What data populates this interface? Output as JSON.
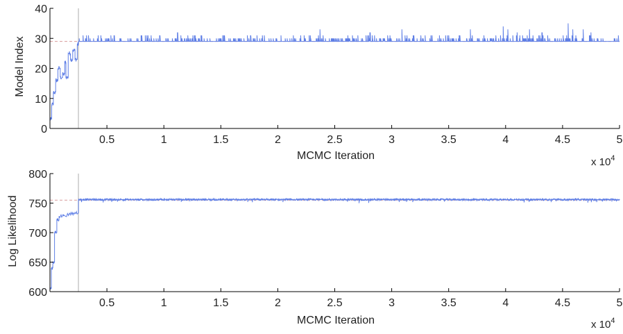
{
  "colors": {
    "trace": "#5f7fe6",
    "burnin_marker": "#c8c8c8",
    "reference": "#d89a9a",
    "axis": "#000000"
  },
  "chart_data": [
    {
      "type": "line",
      "ylabel": "Model Index",
      "xlabel": "MCMC Iteration",
      "x_multiplier_label": "x 10",
      "x_multiplier_exp": "4",
      "xlim": [
        0,
        50000
      ],
      "ylim": [
        0,
        40
      ],
      "xtick_values": [
        5000,
        10000,
        15000,
        20000,
        25000,
        30000,
        35000,
        40000,
        45000,
        50000
      ],
      "xtick_labels": [
        "0.5",
        "1",
        "1.5",
        "2",
        "2.5",
        "3",
        "3.5",
        "4",
        "4.5",
        "5"
      ],
      "ytick_values": [
        0,
        10,
        20,
        30,
        40
      ],
      "ytick_labels": [
        "0",
        "10",
        "20",
        "30",
        "40"
      ],
      "burn_in_x": 2500,
      "reference_y": 29,
      "steps": [
        [
          0,
          3
        ],
        [
          150,
          8
        ],
        [
          300,
          12
        ],
        [
          500,
          16
        ],
        [
          700,
          20
        ],
        [
          900,
          17
        ],
        [
          1100,
          18
        ],
        [
          1300,
          22
        ],
        [
          1400,
          17
        ],
        [
          1600,
          25
        ],
        [
          1800,
          23
        ],
        [
          2000,
          26
        ],
        [
          2200,
          23
        ],
        [
          2400,
          28
        ],
        [
          2500,
          29
        ]
      ],
      "stationary_mean": 29,
      "spikes": [
        [
          11200,
          32
        ],
        [
          23700,
          33
        ],
        [
          28100,
          32
        ],
        [
          30900,
          33
        ],
        [
          36900,
          33
        ],
        [
          39800,
          34
        ],
        [
          40200,
          33
        ],
        [
          41000,
          32
        ],
        [
          42100,
          33
        ],
        [
          43200,
          32
        ],
        [
          45500,
          35
        ],
        [
          45900,
          33
        ],
        [
          46800,
          33
        ],
        [
          47500,
          32
        ]
      ],
      "series": [
        {
          "values_description": ""
        }
      ]
    },
    {
      "type": "line",
      "ylabel": "Log Likelihood",
      "xlabel": "MCMC Iteration",
      "x_multiplier_label": "x 10",
      "x_multiplier_exp": "4",
      "xlim": [
        0,
        50000
      ],
      "ylim": [
        600,
        800
      ],
      "xtick_values": [
        5000,
        10000,
        15000,
        20000,
        25000,
        30000,
        35000,
        40000,
        45000,
        50000
      ],
      "xtick_labels": [
        "0.5",
        "1",
        "1.5",
        "2",
        "2.5",
        "3",
        "3.5",
        "4",
        "4.5",
        "5"
      ],
      "ytick_values": [
        600,
        650,
        700,
        750,
        800
      ],
      "ytick_labels": [
        "600",
        "650",
        "700",
        "750",
        "800"
      ],
      "burn_in_x": 2500,
      "reference_y": 755,
      "steps": [
        [
          0,
          605
        ],
        [
          120,
          640
        ],
        [
          250,
          650
        ],
        [
          400,
          700
        ],
        [
          600,
          722
        ],
        [
          800,
          728
        ],
        [
          1200,
          730
        ],
        [
          1800,
          732
        ],
        [
          2200,
          734
        ],
        [
          2500,
          756
        ]
      ],
      "stationary_mean": 756
    }
  ]
}
